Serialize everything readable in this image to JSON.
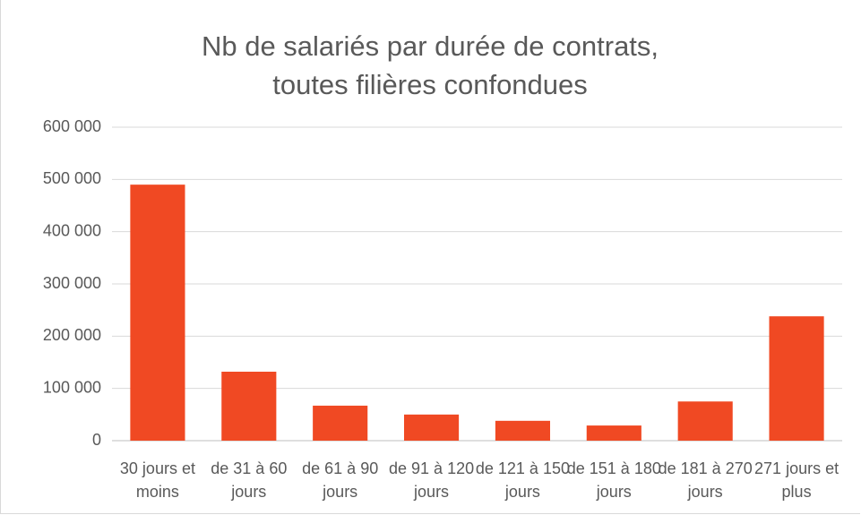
{
  "chart_data": {
    "type": "bar",
    "title": "Nb de salariés par durée de contrats, toutes filières confondues",
    "categories": [
      "30 jours et moins",
      "de 31 à 60 jours",
      "de 61 à 90 jours",
      "de 91 à 120 jours",
      "de 121 à 150 jours",
      "de 151 à 180 jours",
      "de 181 à 270 jours",
      "271 jours et plus"
    ],
    "values": [
      490000,
      132000,
      67000,
      50000,
      38000,
      29000,
      75000,
      238000
    ],
    "color": "#f04923",
    "ylim": [
      0,
      600000
    ],
    "yticks": [
      0,
      {
        "value": 100000,
        "label": "100 000"
      },
      {
        "value": 200000,
        "label": "200 000"
      },
      {
        "value": 300000,
        "label": "300 000"
      },
      {
        "value": 400000,
        "label": "400 000"
      },
      {
        "value": 500000,
        "label": "500 000"
      },
      {
        "value": 600000,
        "label": "600 000"
      }
    ],
    "grid": true
  }
}
